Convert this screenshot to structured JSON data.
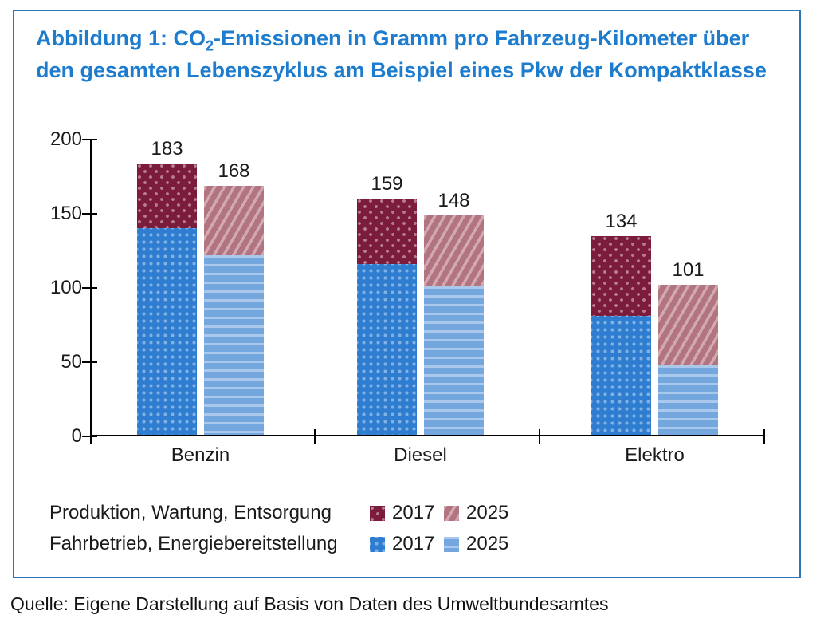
{
  "figure": {
    "title": {
      "line1_pre": "Abbildung 1: CO",
      "line1_sub": "2",
      "line1_post": "-Emissionen in Gramm pro Fahrzeug-Kilometer über",
      "line2": "den gesamten Lebenszyklus am Beispiel eines Pkw der Kompaktklasse"
    },
    "source": "Quelle: Eigene Darstellung auf Basis von Daten des Umweltbundesamtes"
  },
  "legend": {
    "rows": [
      {
        "label": "Produktion, Wartung, Entsorgung",
        "entries": [
          {
            "year": "2017",
            "pattern": "dark-red-dots"
          },
          {
            "year": "2025",
            "pattern": "mauve-diagonal-stripes"
          }
        ]
      },
      {
        "label": "Fahrbetrieb, Energiebereitstellung",
        "entries": [
          {
            "year": "2017",
            "pattern": "blue-dots"
          },
          {
            "year": "2025",
            "pattern": "light-blue-horizontal-stripes"
          }
        ]
      }
    ]
  },
  "colors": {
    "title_blue": "#1d7ccd",
    "frame_blue": "#2e75b6",
    "fahrbetrieb_2017": "#2e7dd1",
    "fahrbetrieb_2025": "#74a7dd",
    "produktion_2017": "#7b1c3c",
    "produktion_2025": "#b17480",
    "axis_text": "#1a1a1a"
  },
  "chart_data": {
    "type": "bar",
    "stacked": true,
    "title": "Abbildung 1: CO2-Emissionen in Gramm pro Fahrzeug-Kilometer über den gesamten Lebenszyklus am Beispiel eines Pkw der Kompaktklasse",
    "categories": [
      "Benzin",
      "Diesel",
      "Elektro"
    ],
    "ylim": [
      0,
      200
    ],
    "yticks": [
      0,
      50,
      100,
      150,
      200
    ],
    "grid": false,
    "legend_position": "bottom",
    "series_labels": {
      "bottom_segment": "Fahrbetrieb, Energiebereitstellung",
      "top_segment": "Produktion, Wartung, Entsorgung"
    },
    "bars": [
      {
        "category": "Benzin",
        "year": "2017",
        "fahrbetrieb": 139,
        "produktion": 44,
        "total": 183
      },
      {
        "category": "Benzin",
        "year": "2025",
        "fahrbetrieb": 121,
        "produktion": 47,
        "total": 168
      },
      {
        "category": "Diesel",
        "year": "2017",
        "fahrbetrieb": 115,
        "produktion": 44,
        "total": 159
      },
      {
        "category": "Diesel",
        "year": "2025",
        "fahrbetrieb": 100,
        "produktion": 48,
        "total": 148
      },
      {
        "category": "Elektro",
        "year": "2017",
        "fahrbetrieb": 80,
        "produktion": 54,
        "total": 134
      },
      {
        "category": "Elektro",
        "year": "2025",
        "fahrbetrieb": 47,
        "produktion": 54,
        "total": 101
      }
    ]
  }
}
